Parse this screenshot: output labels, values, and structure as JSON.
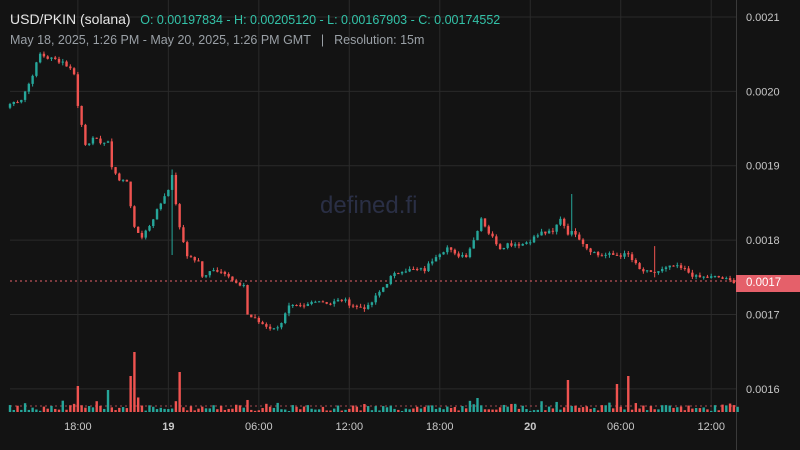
{
  "header": {
    "pair": "USD/PKIN (solana)",
    "ohlc": "O: 0.00197834 - H: 0.00205120 - L: 0.00167903 - C: 0.00174552",
    "range": "May 18, 2025, 1:26 PM - May 20, 2025, 1:26 PM GMT",
    "separator": "|",
    "resolution": "Resolution: 15m"
  },
  "watermark": "defined.fi",
  "price_tag": "0.0017",
  "colors": {
    "up": "#26a69a",
    "down": "#ef5350",
    "background": "#131313",
    "grid": "#2a2a2a",
    "price_line": "#e5606a"
  },
  "chart_data": {
    "type": "candlestick",
    "resolution": "15m",
    "ylim": [
      0.001569,
      0.00212
    ],
    "y_ticks": [
      "0.0021",
      "0.0020",
      "0.0019",
      "0.0018",
      "0.0017",
      "0.0016"
    ],
    "y_tick_values": [
      0.0021,
      0.002,
      0.0019,
      0.0018,
      0.0017,
      0.0016
    ],
    "x_ticks": [
      "18:00",
      "19",
      "06:00",
      "12:00",
      "18:00",
      "20",
      "06:00",
      "12:00"
    ],
    "x_tick_bold": [
      false,
      true,
      false,
      false,
      false,
      true,
      false,
      false
    ],
    "x_tick_index": [
      18,
      42,
      66,
      90,
      114,
      138,
      162,
      186
    ],
    "last_price": 0.001745,
    "anchors": [
      [
        0,
        0.001983
      ],
      [
        3,
        0.00199
      ],
      [
        5,
        0.00201
      ],
      [
        8,
        0.00205
      ],
      [
        10,
        0.002045
      ],
      [
        14,
        0.00204
      ],
      [
        17,
        0.002025
      ],
      [
        18,
        0.00198
      ],
      [
        20,
        0.00193
      ],
      [
        22,
        0.001935
      ],
      [
        26,
        0.00193
      ],
      [
        27,
        0.0019
      ],
      [
        29,
        0.00188
      ],
      [
        31,
        0.00188
      ],
      [
        33,
        0.001815
      ],
      [
        35,
        0.001805
      ],
      [
        37,
        0.00182
      ],
      [
        40,
        0.00185
      ],
      [
        42,
        0.00187
      ],
      [
        43,
        0.001885
      ],
      [
        45,
        0.001815
      ],
      [
        47,
        0.00178
      ],
      [
        50,
        0.00177
      ],
      [
        51,
        0.00175
      ],
      [
        53,
        0.00176
      ],
      [
        56,
        0.00176
      ],
      [
        60,
        0.00174
      ],
      [
        62,
        0.00174
      ],
      [
        63,
        0.0017
      ],
      [
        66,
        0.00169
      ],
      [
        70,
        0.00168
      ],
      [
        72,
        0.00169
      ],
      [
        74,
        0.00171
      ],
      [
        78,
        0.00171
      ],
      [
        81,
        0.00172
      ],
      [
        85,
        0.001715
      ],
      [
        88,
        0.00172
      ],
      [
        92,
        0.00171
      ],
      [
        95,
        0.00171
      ],
      [
        98,
        0.00173
      ],
      [
        101,
        0.00175
      ],
      [
        104,
        0.00176
      ],
      [
        107,
        0.00176
      ],
      [
        110,
        0.00176
      ],
      [
        113,
        0.00178
      ],
      [
        116,
        0.00179
      ],
      [
        118,
        0.00178
      ],
      [
        121,
        0.00178
      ],
      [
        123,
        0.0018
      ],
      [
        125,
        0.00183
      ],
      [
        127,
        0.00181
      ],
      [
        130,
        0.00179
      ],
      [
        132,
        0.001795
      ],
      [
        136,
        0.001795
      ],
      [
        138,
        0.0018
      ],
      [
        141,
        0.00181
      ],
      [
        144,
        0.00181
      ],
      [
        146,
        0.00183
      ],
      [
        148,
        0.00181
      ],
      [
        150,
        0.00181
      ],
      [
        153,
        0.00179
      ],
      [
        156,
        0.00178
      ],
      [
        158,
        0.00178
      ],
      [
        160,
        0.00178
      ],
      [
        164,
        0.00178
      ],
      [
        167,
        0.00176
      ],
      [
        170,
        0.001755
      ],
      [
        173,
        0.00176
      ],
      [
        176,
        0.001765
      ],
      [
        179,
        0.00176
      ],
      [
        182,
        0.00175
      ],
      [
        185,
        0.00175
      ],
      [
        188,
        0.00175
      ],
      [
        191,
        0.001745
      ],
      [
        193,
        0.001745
      ]
    ],
    "spikes": [
      [
        43,
        0.001895,
        0.00178
      ],
      [
        149,
        0.001862,
        0.001805
      ],
      [
        171,
        0.001792,
        0.00175
      ]
    ]
  }
}
